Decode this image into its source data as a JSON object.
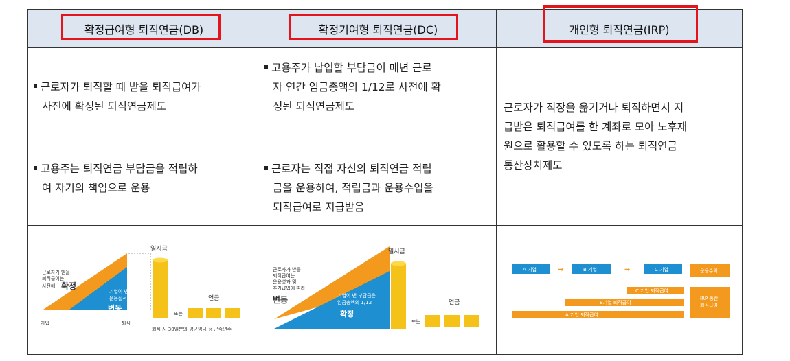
{
  "columns": [
    {
      "header": "확정급여형 퇴직연금(DB)",
      "bullets": [
        [
          "근로자가 퇴직할 때 받을 퇴직급여가",
          "사전에 확정된 퇴직연금제도"
        ],
        [
          "고용주는 퇴직연금 부담금을 적립하",
          "여 자기의 책임으로 운용"
        ]
      ],
      "diagram": {
        "lump": "일시금",
        "annuity": "연금",
        "or": "또는",
        "left_label_lines": [
          "근로자가 받을",
          "퇴직급여는",
          "사전에"
        ],
        "left_big": "확정",
        "mid_label_lines": [
          "기업이 낸 부담금은",
          "운용실적에 따라"
        ],
        "mid_big": "변동",
        "join": "가입",
        "retire": "퇴직",
        "formula": "퇴직 시 30일분의 평균임금 × 근속년수"
      }
    },
    {
      "header": "확정기여형 퇴직연금(DC)",
      "bullets": [
        [
          "고용주가 납입할 부담금이 매년 근로",
          "자 연간 임금총액의 1/12로 사전에 확",
          "정된 퇴직연금제도"
        ],
        [
          "근로자는 직접 자신의 퇴직연금 적립",
          "금을 운용하여, 적립금과 운용수입을",
          "퇴직급여로 지급받음"
        ]
      ],
      "diagram": {
        "lump": "일시금",
        "annuity": "연금",
        "or": "또는",
        "left_label_lines": [
          "근로자가 받을",
          "퇴직급여는",
          "운용성과 및",
          "추가납입에 따라"
        ],
        "left_big": "변동",
        "mid_label_lines": [
          "기업이 낸 부담금은",
          "임금총액의 1/12"
        ],
        "mid_big": "확정"
      }
    },
    {
      "header": "개인형 퇴직연금(IRP)",
      "text": [
        "근로자가 직장을 옮기거나 퇴직하면서 지",
        "급받은 퇴직급여를 한 계좌로 모아 노후재",
        "원으로 활용할 수 있도록 하는 퇴직연금",
        "통산장치제도"
      ],
      "diagram": {
        "companies": [
          "A 기업",
          "B 기업",
          "C 기업"
        ],
        "returns": "운용수익",
        "bars": [
          "C 기업 퇴직급여",
          "B기업 퇴직급여",
          "A 기업 퇴직급여"
        ],
        "irp_lines": [
          "IRP 통산",
          "퇴직급여"
        ]
      }
    }
  ],
  "colors": {
    "header_bg": "#dde5f1",
    "highlight": "#e3141b",
    "orange": "#f39a1e",
    "blue": "#1e8fd0",
    "gold": "#f5c21a"
  }
}
